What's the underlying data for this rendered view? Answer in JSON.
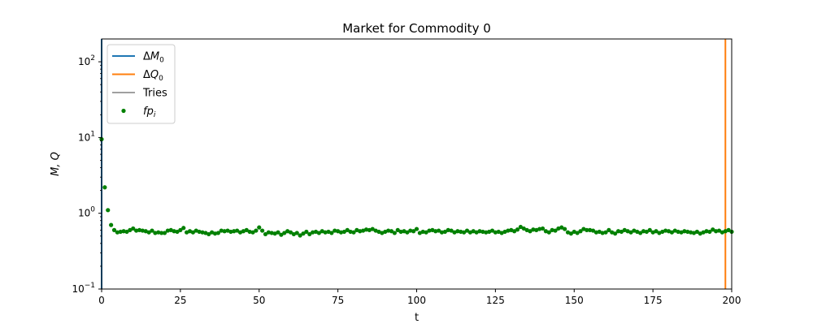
{
  "chart_data": {
    "type": "scatter",
    "title": "Market for Commodity 0",
    "xlabel": "t",
    "ylabel": "M, Q",
    "xlim": [
      0,
      200
    ],
    "ylim": [
      0.1,
      200
    ],
    "yscale": "log",
    "grid": false,
    "legend_placement": "top-left",
    "x_ticks": [
      0,
      25,
      50,
      75,
      100,
      125,
      150,
      175,
      200
    ],
    "y_ticks": [
      {
        "value": 0.1,
        "mantissa": "10",
        "exp": "−1"
      },
      {
        "value": 1,
        "mantissa": "10",
        "exp": "0"
      },
      {
        "value": 10,
        "mantissa": "10",
        "exp": "1"
      },
      {
        "value": 100,
        "mantissa": "10",
        "exp": "2"
      }
    ],
    "series": [
      {
        "name": "ΔM",
        "sub": "0",
        "kind": "line",
        "color": "#1f77b4",
        "points": [
          [
            0,
            200
          ],
          [
            0,
            0.1
          ]
        ]
      },
      {
        "name": "ΔQ",
        "sub": "0",
        "kind": "line",
        "color": "#ff7f0e",
        "points": [
          [
            198,
            200
          ],
          [
            198,
            0.1
          ]
        ]
      },
      {
        "name": "Tries",
        "sub": "",
        "kind": "thin-line",
        "color": "#000000",
        "points": []
      },
      {
        "name": "fp",
        "sub": "i",
        "kind": "scatter",
        "color": "#008000",
        "y": [
          9.5,
          2.2,
          1.1,
          0.7,
          0.6,
          0.56,
          0.57,
          0.58,
          0.57,
          0.6,
          0.63,
          0.59,
          0.6,
          0.59,
          0.58,
          0.56,
          0.59,
          0.55,
          0.56,
          0.55,
          0.55,
          0.59,
          0.6,
          0.58,
          0.57,
          0.6,
          0.64,
          0.56,
          0.58,
          0.56,
          0.59,
          0.57,
          0.56,
          0.55,
          0.53,
          0.56,
          0.54,
          0.55,
          0.59,
          0.58,
          0.59,
          0.57,
          0.58,
          0.59,
          0.56,
          0.58,
          0.6,
          0.57,
          0.56,
          0.59,
          0.65,
          0.59,
          0.53,
          0.56,
          0.55,
          0.54,
          0.56,
          0.52,
          0.55,
          0.58,
          0.56,
          0.53,
          0.55,
          0.51,
          0.54,
          0.57,
          0.53,
          0.56,
          0.57,
          0.55,
          0.58,
          0.56,
          0.57,
          0.55,
          0.59,
          0.58,
          0.56,
          0.57,
          0.6,
          0.57,
          0.56,
          0.6,
          0.58,
          0.59,
          0.61,
          0.6,
          0.62,
          0.59,
          0.57,
          0.55,
          0.57,
          0.59,
          0.58,
          0.55,
          0.6,
          0.57,
          0.58,
          0.56,
          0.59,
          0.58,
          0.62,
          0.55,
          0.57,
          0.56,
          0.59,
          0.6,
          0.58,
          0.59,
          0.56,
          0.57,
          0.6,
          0.59,
          0.56,
          0.58,
          0.57,
          0.56,
          0.59,
          0.56,
          0.58,
          0.56,
          0.58,
          0.57,
          0.56,
          0.57,
          0.59,
          0.56,
          0.57,
          0.55,
          0.57,
          0.59,
          0.6,
          0.58,
          0.61,
          0.66,
          0.63,
          0.6,
          0.58,
          0.61,
          0.6,
          0.62,
          0.63,
          0.58,
          0.56,
          0.6,
          0.59,
          0.63,
          0.65,
          0.62,
          0.56,
          0.54,
          0.57,
          0.55,
          0.58,
          0.62,
          0.6,
          0.6,
          0.59,
          0.56,
          0.57,
          0.55,
          0.56,
          0.6,
          0.56,
          0.54,
          0.58,
          0.57,
          0.6,
          0.58,
          0.56,
          0.59,
          0.57,
          0.55,
          0.58,
          0.57,
          0.6,
          0.56,
          0.58,
          0.55,
          0.57,
          0.59,
          0.58,
          0.56,
          0.59,
          0.57,
          0.56,
          0.58,
          0.57,
          0.56,
          0.55,
          0.57,
          0.54,
          0.56,
          0.58,
          0.57,
          0.61,
          0.58,
          0.59,
          0.56,
          0.58,
          0.6,
          0.57
        ]
      }
    ]
  }
}
